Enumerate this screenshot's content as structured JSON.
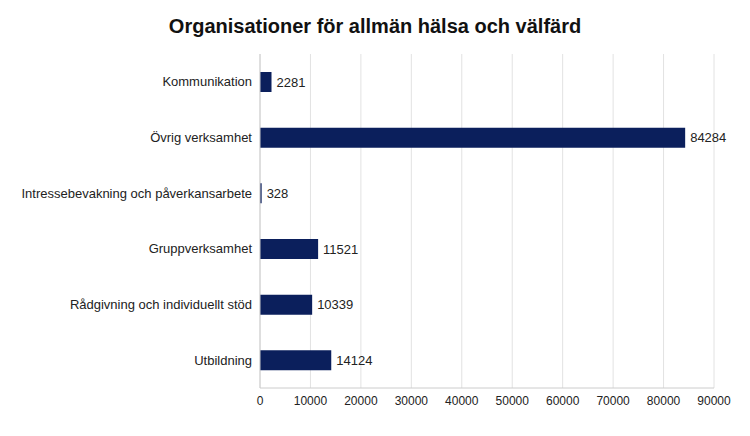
{
  "chart_data": {
    "type": "bar",
    "title": "Organisationer för allmän hälsa och välfärd",
    "orientation": "horizontal",
    "categories": [
      "Kommunikation",
      "Övrig verksamhet",
      "Intressebevakning och påverkansarbete",
      "Gruppverksamhet",
      "Rådgivning och individuellt stöd",
      "Utbildning"
    ],
    "values": [
      2281,
      84284,
      328,
      11521,
      10339,
      14124
    ],
    "color": "#0b1f5c",
    "xlim": [
      0,
      90000
    ],
    "xticks": [
      0,
      10000,
      20000,
      30000,
      40000,
      50000,
      60000,
      70000,
      80000,
      90000
    ],
    "grid": true,
    "data_labels": true
  }
}
